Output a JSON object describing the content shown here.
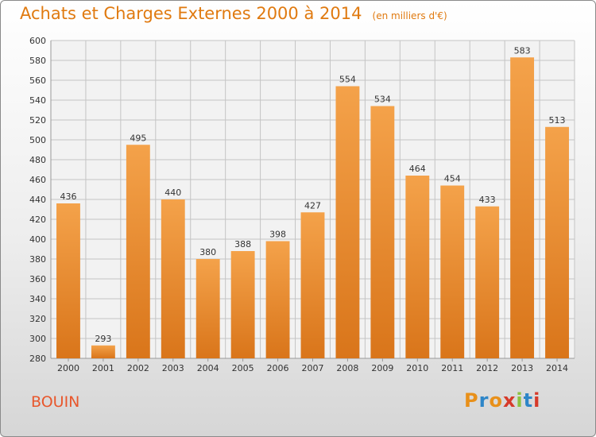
{
  "commune": "BOUIN",
  "logo": {
    "letters": [
      "P",
      "r",
      "o",
      "x",
      "i",
      "t",
      "i"
    ],
    "colors": [
      "#e8901a",
      "#2e86c8",
      "#e8901a",
      "#d63a2a",
      "#8cc23f",
      "#2e86c8",
      "#d63a2a"
    ]
  },
  "colors": {
    "bar_top": "#f4a24a",
    "bar_bottom": "#d9751a",
    "title": "#e07a10",
    "grid": "#c4c4c4"
  },
  "chart_data": {
    "type": "bar",
    "title": "Achats et Charges Externes 2000 à 2014",
    "subtitle": "(en milliers d'€)",
    "categories": [
      "2000",
      "2001",
      "2002",
      "2003",
      "2004",
      "2005",
      "2006",
      "2007",
      "2008",
      "2009",
      "2010",
      "2011",
      "2012",
      "2013",
      "2014"
    ],
    "values": [
      436,
      293,
      495,
      440,
      380,
      388,
      398,
      427,
      554,
      534,
      464,
      454,
      433,
      583,
      513
    ],
    "ylim": [
      280,
      600
    ],
    "yticks": [
      280,
      300,
      320,
      340,
      360,
      380,
      400,
      420,
      440,
      460,
      480,
      500,
      520,
      540,
      560,
      580,
      600
    ],
    "grid": true,
    "data_labels": true
  }
}
